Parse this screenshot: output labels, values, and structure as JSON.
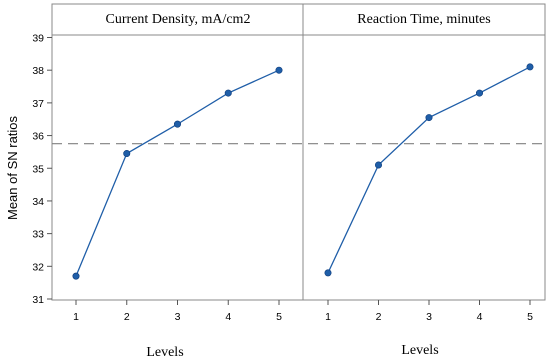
{
  "chart_data": {
    "type": "line",
    "ylabel": "Mean of SN ratios",
    "ylim": [
      31,
      39
    ],
    "y_ticks": [
      31,
      32,
      33,
      34,
      35,
      36,
      37,
      38,
      39
    ],
    "reference_line": 35.75,
    "color": "#1f5ea8",
    "panels": [
      {
        "title": "Current Density, mA/cm2",
        "xlabel": "Levels",
        "x": [
          1,
          2,
          3,
          4,
          5
        ],
        "values": [
          31.7,
          35.45,
          36.35,
          37.3,
          38.0
        ]
      },
      {
        "title": "Reaction Time, minutes",
        "xlabel": "Levels",
        "x": [
          1,
          2,
          3,
          4,
          5
        ],
        "values": [
          31.8,
          35.1,
          36.55,
          37.3,
          38.1
        ]
      }
    ]
  }
}
